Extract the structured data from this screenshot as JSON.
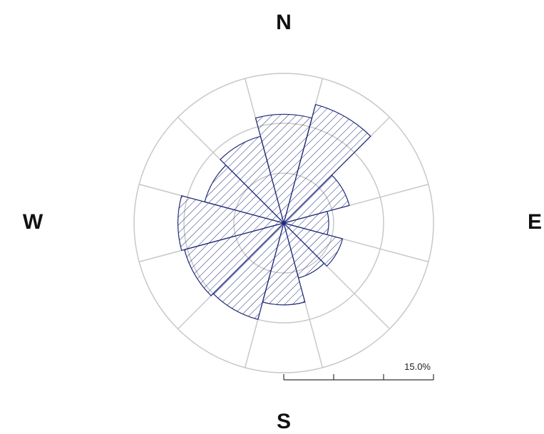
{
  "chart_data": {
    "type": "windrose",
    "categories": [
      "N",
      null,
      null,
      "E",
      null,
      null,
      "S",
      null,
      null,
      "W",
      null,
      null
    ],
    "values": [
      10.9,
      12.3,
      6.8,
      4.5,
      6.1,
      5.7,
      8.2,
      10.0,
      10.3,
      10.6,
      8.2,
      9.0
    ],
    "color": "#1f2a7a",
    "rlim": [
      0,
      15
    ],
    "rticks": [
      0,
      5,
      10,
      {
        "value": 15,
        "label": "15.0%"
      }
    ]
  }
}
